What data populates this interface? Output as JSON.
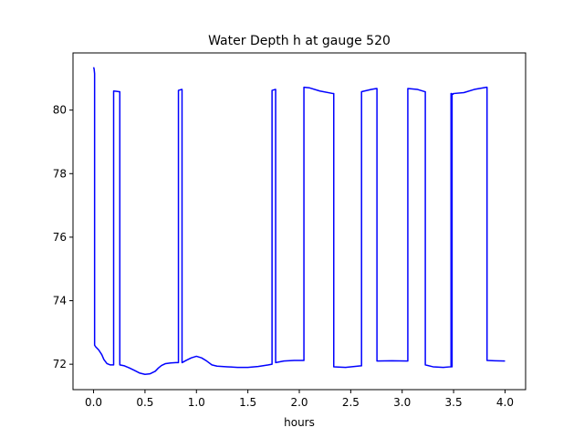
{
  "chart_data": {
    "type": "line",
    "title": "Water Depth h at gauge 520",
    "xlabel": "hours",
    "ylabel": "",
    "xlim": [
      -0.2,
      4.2
    ],
    "ylim": [
      71.2,
      81.8
    ],
    "xticks": [
      0.0,
      0.5,
      1.0,
      1.5,
      2.0,
      2.5,
      3.0,
      3.5,
      4.0
    ],
    "xtick_labels": [
      "0.0",
      "0.5",
      "1.0",
      "1.5",
      "2.0",
      "2.5",
      "3.0",
      "3.5",
      "4.0"
    ],
    "yticks": [
      72,
      74,
      76,
      78,
      80
    ],
    "ytick_labels": [
      "72",
      "74",
      "76",
      "78",
      "80"
    ],
    "grid": false,
    "series": [
      {
        "color": "#0000ff",
        "x": [
          0.0,
          0.005,
          0.01,
          0.01,
          0.02,
          0.05,
          0.08,
          0.1,
          0.13,
          0.16,
          0.19,
          0.195,
          0.195,
          0.25,
          0.255,
          0.255,
          0.3,
          0.35,
          0.4,
          0.45,
          0.5,
          0.55,
          0.6,
          0.63,
          0.66,
          0.7,
          0.75,
          0.8,
          0.825,
          0.825,
          0.855,
          0.86,
          0.86,
          0.9,
          0.95,
          1.0,
          1.05,
          1.1,
          1.15,
          1.2,
          1.3,
          1.4,
          1.5,
          1.6,
          1.7,
          1.735,
          1.735,
          1.765,
          1.77,
          1.77,
          1.85,
          1.95,
          2.045,
          2.045,
          2.1,
          2.2,
          2.33,
          2.335,
          2.335,
          2.45,
          2.6,
          2.605,
          2.605,
          2.7,
          2.75,
          2.755,
          2.755,
          2.9,
          3.05,
          3.055,
          3.055,
          3.15,
          3.22,
          3.225,
          3.225,
          3.3,
          3.4,
          3.47,
          3.475,
          3.475,
          3.48,
          3.485,
          3.485,
          3.49,
          3.495,
          3.495,
          3.6,
          3.7,
          3.82,
          3.825,
          3.825,
          3.9,
          4.0
        ],
        "y": [
          81.35,
          81.3,
          81.15,
          72.6,
          72.55,
          72.45,
          72.3,
          72.15,
          72.02,
          71.98,
          71.98,
          71.98,
          80.6,
          80.58,
          80.58,
          71.98,
          71.95,
          71.88,
          71.8,
          71.72,
          71.68,
          71.7,
          71.78,
          71.88,
          71.96,
          72.02,
          72.04,
          72.05,
          72.05,
          80.62,
          80.65,
          80.65,
          72.05,
          72.12,
          72.2,
          72.25,
          72.2,
          72.1,
          71.98,
          71.94,
          71.92,
          71.9,
          71.9,
          71.93,
          71.98,
          72.0,
          80.62,
          80.65,
          80.65,
          72.05,
          72.1,
          72.12,
          72.12,
          80.72,
          80.7,
          80.6,
          80.52,
          80.52,
          71.92,
          71.9,
          71.95,
          71.95,
          80.58,
          80.65,
          80.68,
          80.68,
          72.1,
          72.11,
          72.1,
          72.1,
          80.68,
          80.65,
          80.58,
          80.58,
          71.98,
          71.92,
          71.9,
          71.92,
          71.92,
          80.52,
          80.52,
          71.92,
          80.5,
          80.5,
          80.5,
          80.52,
          80.55,
          80.65,
          80.72,
          80.72,
          72.12,
          72.11,
          72.1
        ]
      }
    ]
  }
}
